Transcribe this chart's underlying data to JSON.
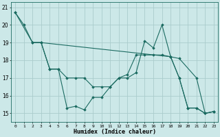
{
  "xlabel": "Humidex (Indice chaleur)",
  "bg_color": "#cce8e8",
  "grid_color": "#aacccc",
  "line_color": "#1a6a60",
  "xlim": [
    -0.5,
    23.5
  ],
  "ylim": [
    14.5,
    21.3
  ],
  "yticks": [
    15,
    16,
    17,
    18,
    19,
    20,
    21
  ],
  "xticks": [
    0,
    1,
    2,
    3,
    4,
    5,
    6,
    7,
    8,
    9,
    10,
    11,
    12,
    13,
    14,
    15,
    16,
    17,
    18,
    19,
    20,
    21,
    22,
    23
  ],
  "xtick_labels": [
    "0",
    "1",
    "2",
    "3",
    "4",
    "5",
    "6",
    "7",
    "8",
    "9",
    "10",
    "11",
    "12",
    "13",
    "14",
    "15",
    "16",
    "17",
    "18",
    "19",
    "20",
    "21",
    "22",
    "23"
  ],
  "series": [
    {
      "x": [
        0,
        2,
        3,
        18,
        19,
        21,
        22,
        23
      ],
      "y": [
        20.7,
        19.0,
        19.0,
        18.2,
        18.1,
        17.0,
        15.0,
        15.1
      ]
    },
    {
      "x": [
        0,
        1,
        2,
        3,
        4,
        5,
        6,
        7,
        8,
        9,
        10,
        11,
        12,
        13,
        14,
        15,
        16,
        17,
        18,
        19,
        20,
        21,
        22,
        23
      ],
      "y": [
        20.7,
        20.0,
        19.0,
        19.0,
        17.5,
        17.5,
        15.3,
        15.4,
        15.2,
        15.9,
        15.9,
        16.5,
        17.0,
        17.0,
        17.3,
        19.1,
        18.7,
        20.0,
        18.2,
        17.0,
        15.3,
        15.3,
        15.0,
        15.1
      ]
    },
    {
      "x": [
        2,
        3,
        4,
        5,
        6,
        7,
        8,
        9,
        10,
        11,
        12,
        13,
        14,
        15,
        16,
        17,
        18,
        19,
        20,
        21,
        22,
        23
      ],
      "y": [
        19.0,
        19.0,
        17.5,
        17.5,
        17.0,
        17.0,
        17.0,
        16.5,
        16.5,
        16.5,
        17.0,
        17.2,
        18.3,
        18.3,
        18.3,
        18.3,
        18.2,
        17.0,
        15.3,
        15.3,
        15.0,
        15.1
      ]
    }
  ]
}
